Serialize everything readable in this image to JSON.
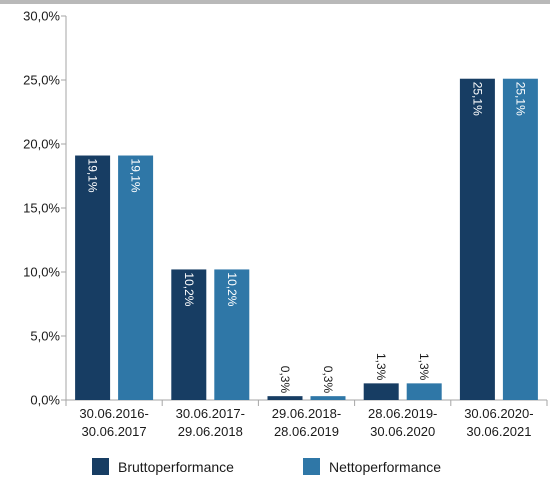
{
  "chart_data": {
    "type": "bar",
    "categories": [
      [
        "30.06.2016-",
        "30.06.2017"
      ],
      [
        "30.06.2017-",
        "29.06.2018"
      ],
      [
        "29.06.2018-",
        "28.06.2019"
      ],
      [
        "28.06.2019-",
        "30.06.2020"
      ],
      [
        "30.06.2020-",
        "30.06.2021"
      ]
    ],
    "series": [
      {
        "name": "Bruttoperformance",
        "values": [
          19.1,
          10.2,
          0.3,
          1.3,
          25.1
        ],
        "labels": [
          "19,1%",
          "10,2%",
          "0,3%",
          "1,3%",
          "25,1%"
        ],
        "color": "#173d63"
      },
      {
        "name": "Nettoperformance",
        "values": [
          19.1,
          10.2,
          0.3,
          1.3,
          25.1
        ],
        "labels": [
          "19,1%",
          "10,2%",
          "0,3%",
          "1,3%",
          "25,1%"
        ],
        "color": "#2f77a7"
      }
    ],
    "yticks": [
      0,
      5,
      10,
      15,
      20,
      25,
      30
    ],
    "ytick_labels": [
      "0,0%",
      "5,0%",
      "10,0%",
      "15,0%",
      "20,0%",
      "25,0%",
      "30,0%"
    ],
    "ylim": [
      0,
      30
    ],
    "grid": false,
    "legend_position": "bottom-center",
    "data_label_color_inside": "#ffffff",
    "data_label_color_outside": "#1a1a1a",
    "axis_color": "#a6a6a6"
  }
}
